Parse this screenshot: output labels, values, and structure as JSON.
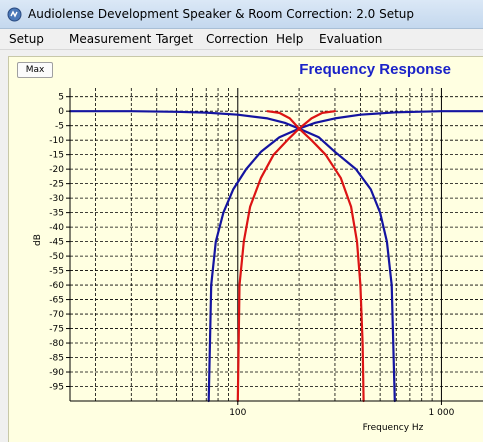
{
  "window": {
    "title": "Audiolense Development Speaker & Room Correction: 2.0 Setup",
    "icon": "audiolense-app-icon"
  },
  "menu": {
    "items": [
      "Setup",
      "Measurement",
      "Target",
      "Correction",
      "Help",
      "Evaluation"
    ]
  },
  "chart_panel": {
    "max_button_label": "Max"
  },
  "colors": {
    "plot_background": "#ffffe1",
    "title": "#1a22c8",
    "series_blue": "#1414a0",
    "series_red": "#dc1414",
    "titlebar": "#c4d8ee"
  },
  "chart_data": {
    "type": "line",
    "title": "Frequency Response",
    "xlabel": "Frequency Hz",
    "ylabel": "dB",
    "x_scale": "log",
    "xlim": [
      15,
      1600
    ],
    "ylim": [
      -100,
      8
    ],
    "y_ticks": [
      5,
      0,
      -5,
      -10,
      -15,
      -20,
      -25,
      -30,
      -35,
      -40,
      -45,
      -50,
      -55,
      -60,
      -65,
      -70,
      -75,
      -80,
      -85,
      -90,
      -95
    ],
    "y_tick_labels": [
      "5",
      "0",
      "-5",
      "-10",
      "-15",
      "-20",
      "-25",
      "-30",
      "-35",
      "-40",
      "-45",
      "-50",
      "-55",
      "-60",
      "-65",
      "-70",
      "-75",
      "-80",
      "-85",
      "-90",
      "-95"
    ],
    "x_tick_labels": [
      {
        "value": 100,
        "label": "100"
      },
      {
        "value": 1000,
        "label": "1 000"
      }
    ],
    "grid": true,
    "series": [
      {
        "color": "#1414a0",
        "x": [
          15,
          30,
          50,
          70,
          100,
          140,
          170,
          200
        ],
        "y": [
          0,
          0,
          -0.2,
          -0.5,
          -1.2,
          -2.5,
          -4.0,
          -6.0
        ]
      },
      {
        "color": "#1414a0",
        "x": [
          200,
          240,
          300,
          400,
          600,
          1000,
          1600
        ],
        "y": [
          -6.0,
          -4.0,
          -2.5,
          -1.2,
          -0.4,
          0,
          0
        ]
      },
      {
        "color": "#1414a0",
        "x": [
          72,
          74,
          78,
          85,
          95,
          110,
          130,
          160,
          200
        ],
        "y": [
          -100,
          -60,
          -45,
          -35,
          -27,
          -20,
          -14,
          -9,
          -6
        ]
      },
      {
        "color": "#1414a0",
        "x": [
          200,
          250,
          300,
          380,
          450,
          500,
          540,
          570,
          590
        ],
        "y": [
          -6,
          -9,
          -14,
          -20,
          -27,
          -35,
          -45,
          -60,
          -100
        ]
      },
      {
        "color": "#dc1414",
        "x": [
          100,
          102,
          107,
          115,
          130,
          150,
          175,
          200
        ],
        "y": [
          -100,
          -60,
          -45,
          -33,
          -23,
          -15,
          -10,
          -6
        ]
      },
      {
        "color": "#dc1414",
        "x": [
          200,
          230,
          270,
          320,
          360,
          385,
          400,
          410,
          415
        ],
        "y": [
          -6,
          -10,
          -15,
          -23,
          -33,
          -45,
          -60,
          -80,
          -100
        ]
      },
      {
        "color": "#dc1414",
        "x": [
          140,
          160,
          180,
          200
        ],
        "y": [
          0,
          -0.6,
          -2.5,
          -6
        ]
      },
      {
        "color": "#dc1414",
        "x": [
          200,
          230,
          260,
          300
        ],
        "y": [
          -6,
          -2.5,
          -0.6,
          0
        ]
      }
    ]
  }
}
